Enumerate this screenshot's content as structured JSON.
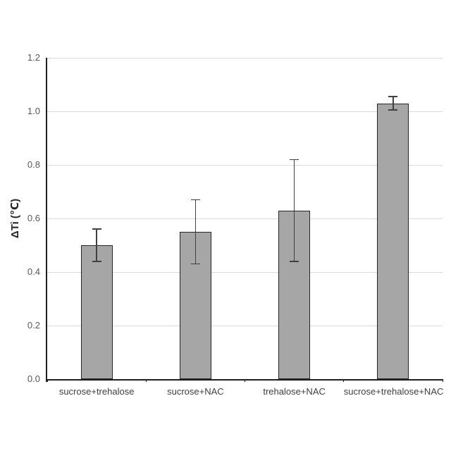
{
  "chart_data": {
    "type": "bar",
    "title": "",
    "xlabel": "",
    "ylabel": "ΔTi (℃)",
    "categories": [
      "sucrose+trehalose",
      "sucrose+NAC",
      "trehalose+NAC",
      "sucrose+trehalose+NAC"
    ],
    "values": [
      0.5,
      0.55,
      0.63,
      1.03
    ],
    "errors": [
      0.06,
      0.12,
      0.19,
      0.025
    ],
    "error_bars": true,
    "ylim": [
      0.0,
      1.2
    ],
    "yticks": [
      0,
      0.2,
      0.4,
      0.6,
      0.8,
      1.0,
      1.2
    ],
    "ytick_labels": [
      "0.0",
      "0.2",
      "0.4",
      "0.6",
      "0.8",
      "1.0",
      "1.2"
    ],
    "grid": "horizontal",
    "legend": "none",
    "colors": {
      "bg": "#ffffff",
      "fill": "#a6a6a6",
      "barborder": "#262626",
      "grid": "#d9d9d9",
      "axis": "#1f1f1f",
      "err": "#404040",
      "ticktext": "#595959",
      "cattext": "#404040",
      "labeltext": "#262626"
    }
  }
}
